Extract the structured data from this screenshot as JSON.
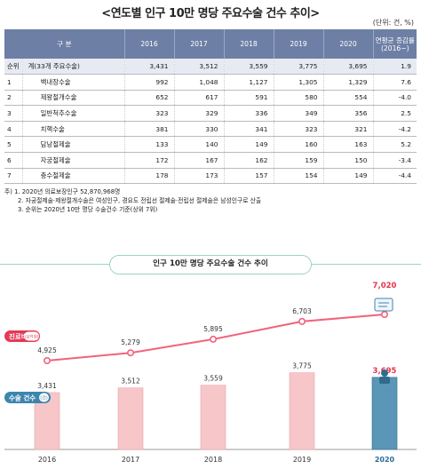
{
  "title": "<연도별 인구 10만 명당 주요수술 건수 추이>",
  "unit": "(단위: 건, %)",
  "table": {
    "headers": [
      "구 분",
      "2016",
      "2017",
      "2018",
      "2019",
      "2020",
      "연평균 증감률 (2016~)"
    ],
    "rank_label": "순위",
    "total_row": {
      "rank": "",
      "name": "계(33개 주요수술)",
      "values": [
        "3,431",
        "3,512",
        "3,559",
        "3,775",
        "3,695",
        "1.9"
      ]
    },
    "rows": [
      {
        "rank": "1",
        "name": "백내장수술",
        "values": [
          "992",
          "1,048",
          "1,127",
          "1,305",
          "1,329",
          "7.6"
        ]
      },
      {
        "rank": "2",
        "name": "제왕절개수술",
        "values": [
          "652",
          "617",
          "591",
          "580",
          "554",
          "-4.0"
        ]
      },
      {
        "rank": "3",
        "name": "일반척추수술",
        "values": [
          "323",
          "329",
          "336",
          "349",
          "356",
          "2.5"
        ]
      },
      {
        "rank": "4",
        "name": "치핵수술",
        "values": [
          "381",
          "330",
          "341",
          "323",
          "321",
          "-4.2"
        ]
      },
      {
        "rank": "5",
        "name": "담낭절제술",
        "values": [
          "133",
          "140",
          "149",
          "160",
          "163",
          "5.2"
        ]
      },
      {
        "rank": "6",
        "name": "자궁절제술",
        "values": [
          "172",
          "167",
          "162",
          "159",
          "150",
          "-3.4"
        ]
      },
      {
        "rank": "7",
        "name": "충수절제술",
        "values": [
          "178",
          "173",
          "157",
          "154",
          "149",
          "-4.4"
        ]
      }
    ]
  },
  "notes": [
    "주) 1. 2020년 의료보장인구 52,870,968명",
    "2. 자궁절제술·제왕절개수술은 여성인구, 경요도 전립선 절제술·전립선 절제술은 남성인구로 산출",
    "3. 순위는 2020년 10만 명당 수술건수 기준(상위 7위)"
  ],
  "chart_data": {
    "type": "bar",
    "title": "인구 10만 명당 주요수술 건수 추이",
    "categories": [
      "2016",
      "2017",
      "2018",
      "2019",
      "2020"
    ],
    "series": [
      {
        "name": "진료비",
        "unit_label": "(십억원)",
        "type": "line",
        "values": [
          4925,
          5279,
          5895,
          6703,
          7020
        ],
        "value_labels": [
          "4,925",
          "5,279",
          "5,895",
          "6,703",
          "7,020"
        ]
      },
      {
        "name": "수술 건수",
        "unit_label": "(건)",
        "type": "bar",
        "values": [
          3431,
          3512,
          3559,
          3775,
          3695
        ],
        "value_labels": [
          "3,431",
          "3,512",
          "3,559",
          "3,775",
          "3,695"
        ]
      }
    ],
    "colors": {
      "line": "#f2627a",
      "bar": "#f6c6c9",
      "bar_highlight": "#5a96b8",
      "highlight_label": "#e8344d",
      "badge_line": "#e23a55",
      "badge_bar": "#3c86ad",
      "year_highlight": "#2d6d98"
    }
  }
}
